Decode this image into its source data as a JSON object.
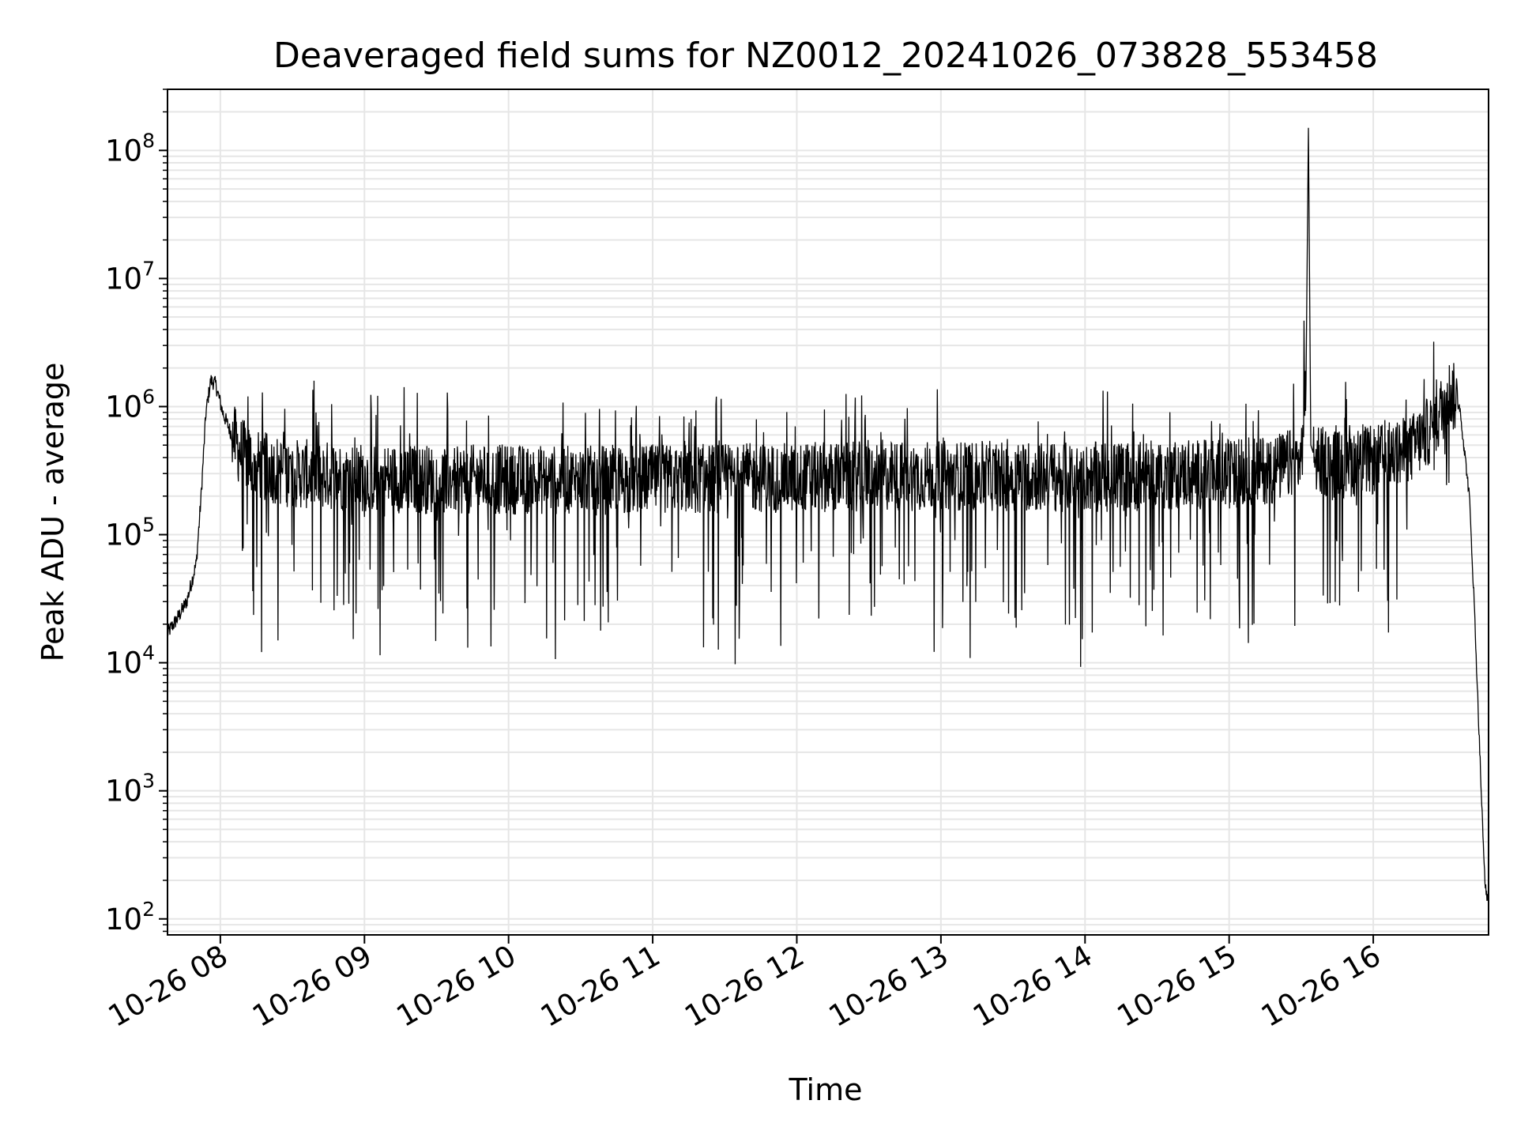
{
  "chart_data": {
    "type": "line",
    "title": "Deaveraged field sums for NZ0012_20241026_073828_553458",
    "xlabel": "Time",
    "ylabel": "Peak ADU - average",
    "yscale": "log",
    "ylim": [
      75,
      300000000
    ],
    "xlim": [
      "10-26 07:38",
      "10-26 16:48"
    ],
    "grid": true,
    "line_color": "#000000",
    "grid_color": "#e6e6e6",
    "x_ticks": [
      {
        "t": "10-26 08:00",
        "label": "10-26 08"
      },
      {
        "t": "10-26 09:00",
        "label": "10-26 09"
      },
      {
        "t": "10-26 10:00",
        "label": "10-26 10"
      },
      {
        "t": "10-26 11:00",
        "label": "10-26 11"
      },
      {
        "t": "10-26 12:00",
        "label": "10-26 12"
      },
      {
        "t": "10-26 13:00",
        "label": "10-26 13"
      },
      {
        "t": "10-26 14:00",
        "label": "10-26 14"
      },
      {
        "t": "10-26 15:00",
        "label": "10-26 15"
      },
      {
        "t": "10-26 16:00",
        "label": "10-26 16"
      }
    ],
    "y_ticks": [
      {
        "value": 100,
        "base": "10",
        "exp": "2"
      },
      {
        "value": 1000,
        "base": "10",
        "exp": "3"
      },
      {
        "value": 10000,
        "base": "10",
        "exp": "4"
      },
      {
        "value": 100000,
        "base": "10",
        "exp": "5"
      },
      {
        "value": 1000000,
        "base": "10",
        "exp": "6"
      },
      {
        "value": 10000000,
        "base": "10",
        "exp": "7"
      },
      {
        "value": 100000000,
        "base": "10",
        "exp": "8"
      }
    ],
    "series": [
      {
        "x": [
          "10-26 07:38",
          "10-26 07:42",
          "10-26 07:46",
          "10-26 07:50",
          "10-26 07:52",
          "10-26 07:54",
          "10-26 07:56",
          "10-26 07:58",
          "10-26 08:01",
          "10-26 08:04",
          "10-26 08:08",
          "10-26 08:15",
          "10-26 08:30",
          "10-26 09:00",
          "10-26 09:30",
          "10-26 10:00",
          "10-26 10:30",
          "10-26 11:00",
          "10-26 11:30",
          "10-26 12:00",
          "10-26 12:30",
          "10-26 13:00",
          "10-26 13:30",
          "10-26 14:00",
          "10-26 14:30",
          "10-26 15:00",
          "10-26 15:20",
          "10-26 15:30",
          "10-26 15:32",
          "10-26 15:33",
          "10-26 15:34",
          "10-26 15:36",
          "10-26 15:45",
          "10-26 16:00",
          "10-26 16:15",
          "10-26 16:25",
          "10-26 16:32",
          "10-26 16:36",
          "10-26 16:40",
          "10-26 16:42",
          "10-26 16:44",
          "10-26 16:46",
          "10-26 16:47"
        ],
        "y": [
          17000,
          22000,
          30000,
          60000,
          200000,
          900000,
          1600000,
          1500000,
          900000,
          650000,
          450000,
          350000,
          300000,
          280000,
          270000,
          270000,
          265000,
          270000,
          275000,
          280000,
          285000,
          290000,
          285000,
          280000,
          290000,
          300000,
          330000,
          380000,
          1500000,
          150000000,
          500000,
          380000,
          360000,
          380000,
          450000,
          700000,
          1300000,
          1000000,
          200000,
          30000,
          3000,
          300,
          150
        ]
      }
    ]
  }
}
